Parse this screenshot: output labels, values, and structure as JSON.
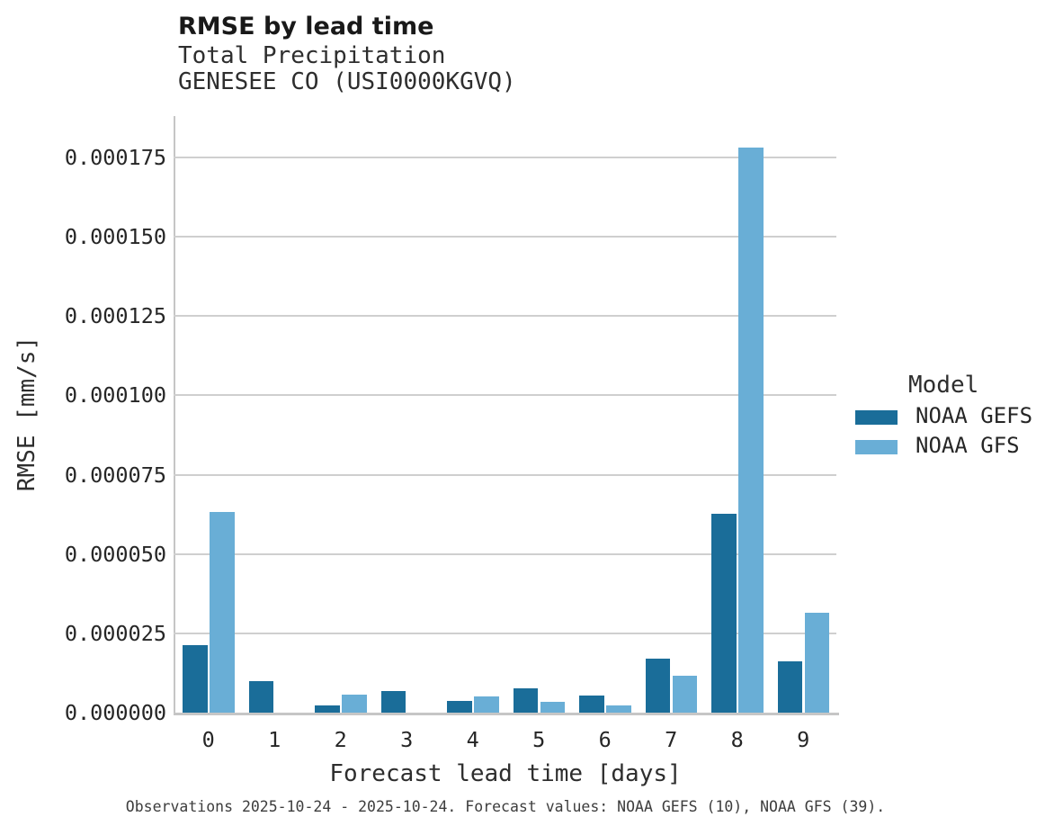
{
  "chart_data": {
    "type": "bar",
    "title": "RMSE by lead time",
    "subtitle_line1": "Total Precipitation",
    "subtitle_line2": "GENESEE CO (USI0000KGVQ)",
    "xlabel": "Forecast lead time [days]",
    "ylabel": "RMSE [mm/s]",
    "categories": [
      "0",
      "1",
      "2",
      "3",
      "4",
      "5",
      "6",
      "7",
      "8",
      "9"
    ],
    "series": [
      {
        "name": "NOAA GEFS",
        "color": "#1a6d99",
        "values": [
          2.14e-05,
          1e-05,
          2.3e-06,
          6.9e-06,
          3.6e-06,
          7.7e-06,
          5.5e-06,
          1.7e-05,
          6.26e-05,
          1.63e-05
        ]
      },
      {
        "name": "NOAA GFS",
        "color": "#69aed6",
        "values": [
          6.33e-05,
          0,
          5.7e-06,
          0,
          5.1e-06,
          3.3e-06,
          2.4e-06,
          1.15e-05,
          0.0001782,
          3.16e-05
        ]
      }
    ],
    "ylim": [
      0,
      0.000188
    ],
    "yticks": {
      "values": [
        0,
        2.5e-05,
        5e-05,
        7.5e-05,
        0.0001,
        0.000125,
        0.00015,
        0.000175
      ],
      "labels": [
        "0.000000",
        "0.000025",
        "0.000050",
        "0.000075",
        "0.000100",
        "0.000125",
        "0.000150",
        "0.000175"
      ]
    },
    "grid": "horizontal",
    "legend_title": "Model",
    "legend_position": "right",
    "caption": "Observations 2025-10-24 - 2025-10-24. Forecast values: NOAA GEFS (10), NOAA GFS (39)."
  }
}
